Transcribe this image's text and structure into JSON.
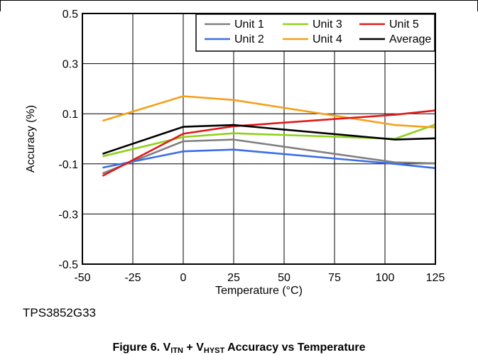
{
  "part_number": "TPS3852G33",
  "caption": {
    "prefix": "Figure 6. V",
    "sub1": "ITN",
    "mid": " + V",
    "sub2": "HYST",
    "suffix": " Accuracy vs Temperature"
  },
  "chart_data": {
    "type": "line",
    "title": "",
    "xlabel": "Temperature (°C)",
    "ylabel": "Accuracy (%)",
    "xlim": [
      -50,
      125
    ],
    "ylim": [
      -0.5,
      0.5
    ],
    "x_ticks": [
      -50,
      -25,
      0,
      25,
      50,
      75,
      100,
      125
    ],
    "y_ticks": [
      -0.5,
      -0.3,
      -0.1,
      0.1,
      0.3,
      0.5
    ],
    "x_tick_labels": [
      "-50",
      "-25",
      "0",
      "25",
      "50",
      "75",
      "100",
      "125"
    ],
    "y_tick_labels": [
      "-0.5",
      "-0.3",
      "-0.1",
      "0.1",
      "0.3",
      "0.5"
    ],
    "grid": true,
    "legend_position": "top-right",
    "x": [
      -40,
      0,
      25,
      105,
      125
    ],
    "series": [
      {
        "name": "Unit 1",
        "color": "#808080",
        "values": [
          -0.138,
          -0.01,
          -0.003,
          -0.094,
          -0.098
        ]
      },
      {
        "name": "Unit 2",
        "color": "#3a6ee8",
        "values": [
          -0.115,
          -0.05,
          -0.043,
          -0.1,
          -0.117
        ]
      },
      {
        "name": "Unit 3",
        "color": "#8fd11a",
        "values": [
          -0.07,
          0.007,
          0.022,
          0.0,
          0.057
        ]
      },
      {
        "name": "Unit 4",
        "color": "#f5a01a",
        "values": [
          0.072,
          0.17,
          0.155,
          0.055,
          0.045
        ]
      },
      {
        "name": "Unit 5",
        "color": "#e01a1a",
        "values": [
          -0.148,
          0.02,
          0.05,
          0.096,
          0.113
        ]
      },
      {
        "name": "Average",
        "color": "#000000",
        "values": [
          -0.06,
          0.048,
          0.055,
          -0.003,
          0.002
        ]
      }
    ]
  }
}
